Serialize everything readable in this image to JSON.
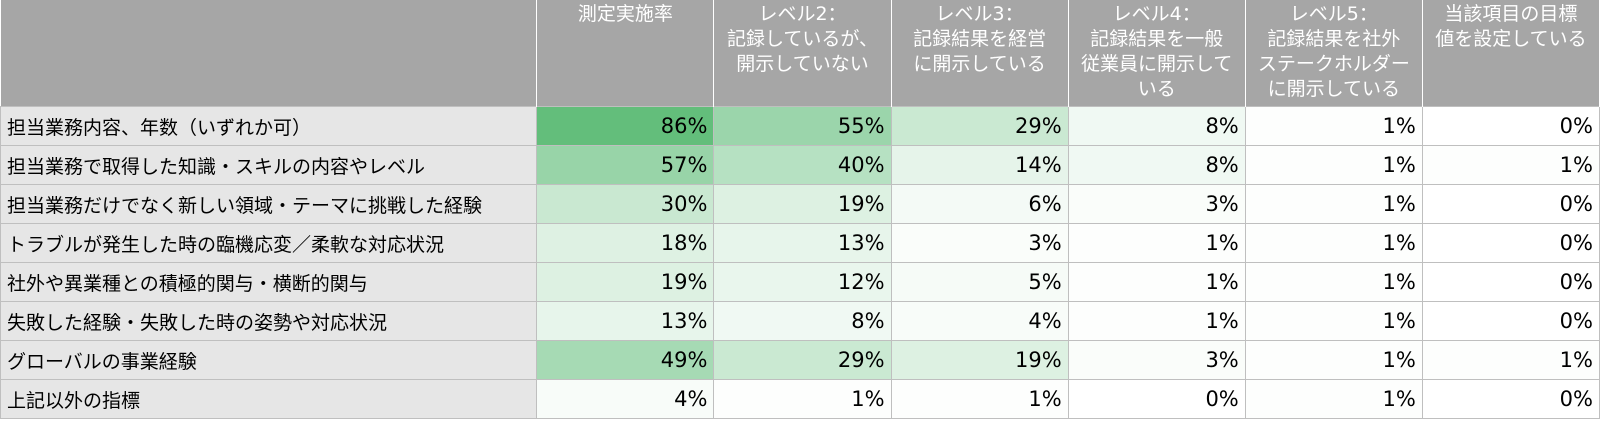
{
  "chart_data": {
    "type": "table",
    "title": "",
    "corner_label": "",
    "columns": [
      "測定実施率",
      "レベル2：\n記録しているが、\n開示していない",
      "レベル3：\n記録結果を経営\nに開示している",
      "レベル4：\n記録結果を一般\n従業員に開示して\nいる",
      "レベル5：\n記録結果を社外\nステークホルダー\nに開示している",
      "当該項目の目標\n値を設定している"
    ],
    "rows": [
      {
        "label": "担当業務内容、年数（いずれか可）",
        "values": [
          86,
          55,
          29,
          8,
          1,
          0
        ]
      },
      {
        "label": "担当業務で取得した知識・スキルの内容やレベル",
        "values": [
          57,
          40,
          14,
          8,
          1,
          1
        ]
      },
      {
        "label": "担当業務だけでなく新しい領域・テーマに挑戦した経験",
        "values": [
          30,
          19,
          6,
          3,
          1,
          0
        ]
      },
      {
        "label": "トラブルが発生した時の臨機応変／柔軟な対応状況",
        "values": [
          18,
          13,
          3,
          1,
          1,
          0
        ]
      },
      {
        "label": "社外や異業種との積極的関与・横断的関与",
        "values": [
          19,
          12,
          5,
          1,
          1,
          0
        ]
      },
      {
        "label": "失敗した経験・失敗した時の姿勢や対応状況",
        "values": [
          13,
          8,
          4,
          1,
          1,
          0
        ]
      },
      {
        "label": "グローバルの事業経験",
        "values": [
          49,
          29,
          19,
          3,
          1,
          1
        ]
      },
      {
        "label": "上記以外の指標",
        "values": [
          4,
          1,
          1,
          0,
          1,
          0
        ]
      }
    ],
    "value_suffix": "%",
    "color_scale": {
      "min_color": "#ffffff",
      "max_color": "#63be7b",
      "min_value": 0,
      "max_value": 86
    },
    "header_color": "#a6a6a6",
    "label_column_color": "#e6e6e6"
  }
}
